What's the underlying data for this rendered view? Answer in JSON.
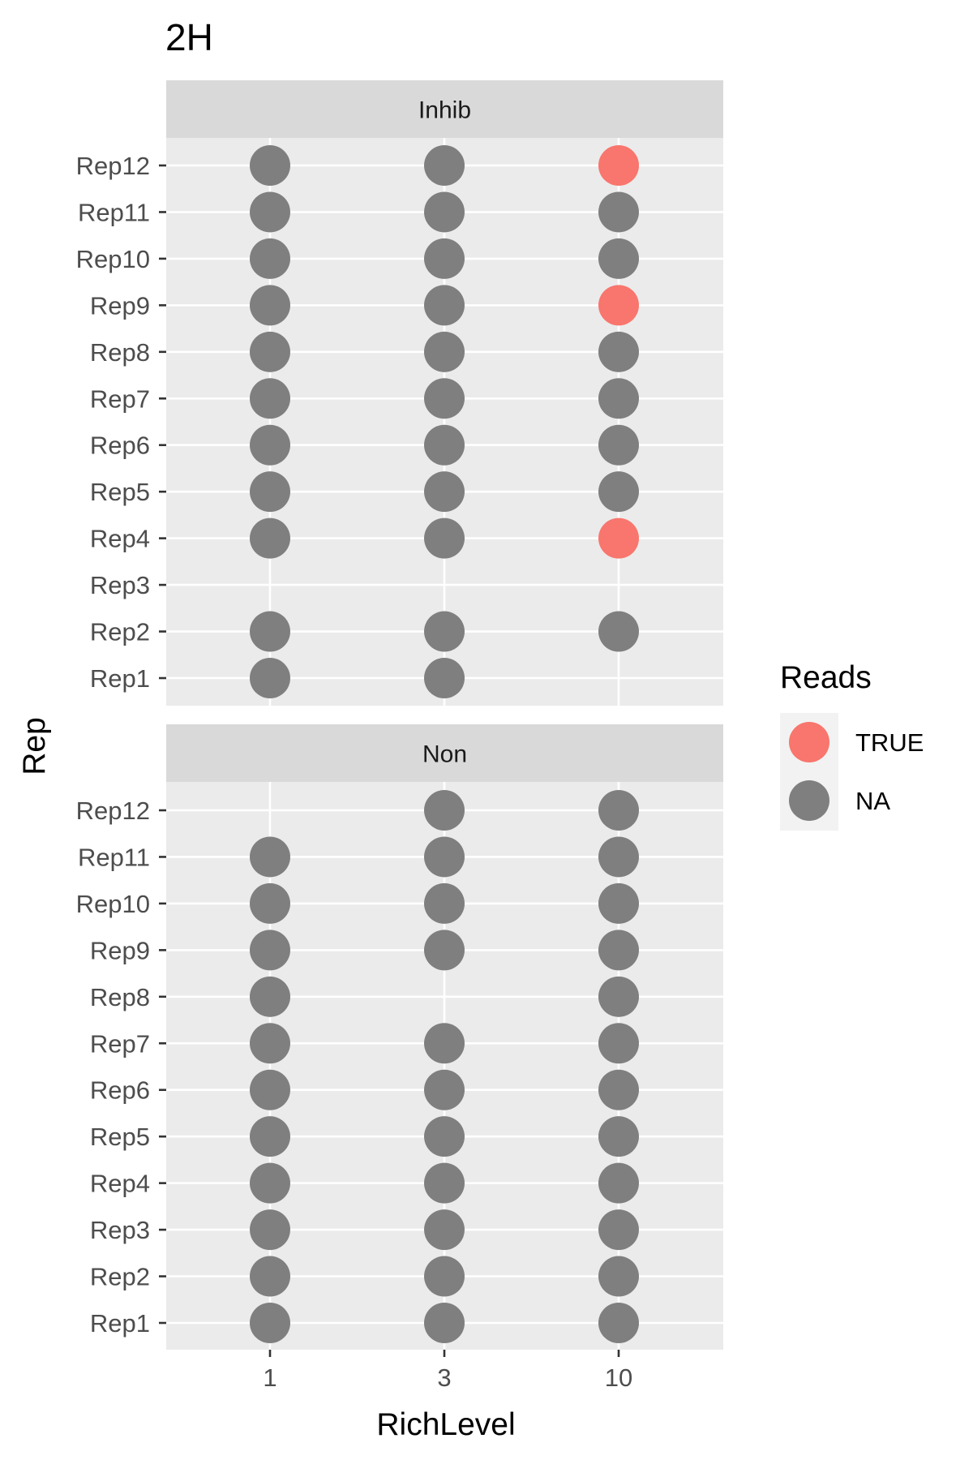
{
  "chart_data": {
    "type": "scatter",
    "title": "2H",
    "xlabel": "RichLevel",
    "ylabel": "Rep",
    "x_categories": [
      "1",
      "3",
      "10"
    ],
    "y_categories": [
      "Rep1",
      "Rep2",
      "Rep3",
      "Rep4",
      "Rep5",
      "Rep6",
      "Rep7",
      "Rep8",
      "Rep9",
      "Rep10",
      "Rep11",
      "Rep12"
    ],
    "grid": true,
    "legend": {
      "title": "Reads",
      "placement": "right",
      "entries": [
        {
          "label": "TRUE",
          "color": "#F8766D"
        },
        {
          "label": "NA",
          "color": "#7F7F7F"
        }
      ]
    },
    "facets": [
      {
        "label": "Inhib",
        "points": [
          {
            "x": "1",
            "y": "Rep12",
            "reads": "NA"
          },
          {
            "x": "3",
            "y": "Rep12",
            "reads": "NA"
          },
          {
            "x": "10",
            "y": "Rep12",
            "reads": "TRUE"
          },
          {
            "x": "1",
            "y": "Rep11",
            "reads": "NA"
          },
          {
            "x": "3",
            "y": "Rep11",
            "reads": "NA"
          },
          {
            "x": "10",
            "y": "Rep11",
            "reads": "NA"
          },
          {
            "x": "1",
            "y": "Rep10",
            "reads": "NA"
          },
          {
            "x": "3",
            "y": "Rep10",
            "reads": "NA"
          },
          {
            "x": "10",
            "y": "Rep10",
            "reads": "NA"
          },
          {
            "x": "1",
            "y": "Rep9",
            "reads": "NA"
          },
          {
            "x": "3",
            "y": "Rep9",
            "reads": "NA"
          },
          {
            "x": "10",
            "y": "Rep9",
            "reads": "TRUE"
          },
          {
            "x": "1",
            "y": "Rep8",
            "reads": "NA"
          },
          {
            "x": "3",
            "y": "Rep8",
            "reads": "NA"
          },
          {
            "x": "10",
            "y": "Rep8",
            "reads": "NA"
          },
          {
            "x": "1",
            "y": "Rep7",
            "reads": "NA"
          },
          {
            "x": "3",
            "y": "Rep7",
            "reads": "NA"
          },
          {
            "x": "10",
            "y": "Rep7",
            "reads": "NA"
          },
          {
            "x": "1",
            "y": "Rep6",
            "reads": "NA"
          },
          {
            "x": "3",
            "y": "Rep6",
            "reads": "NA"
          },
          {
            "x": "10",
            "y": "Rep6",
            "reads": "NA"
          },
          {
            "x": "1",
            "y": "Rep5",
            "reads": "NA"
          },
          {
            "x": "3",
            "y": "Rep5",
            "reads": "NA"
          },
          {
            "x": "10",
            "y": "Rep5",
            "reads": "NA"
          },
          {
            "x": "1",
            "y": "Rep4",
            "reads": "NA"
          },
          {
            "x": "3",
            "y": "Rep4",
            "reads": "NA"
          },
          {
            "x": "10",
            "y": "Rep4",
            "reads": "TRUE"
          },
          {
            "x": "1",
            "y": "Rep2",
            "reads": "NA"
          },
          {
            "x": "3",
            "y": "Rep2",
            "reads": "NA"
          },
          {
            "x": "10",
            "y": "Rep2",
            "reads": "NA"
          },
          {
            "x": "1",
            "y": "Rep1",
            "reads": "NA"
          },
          {
            "x": "3",
            "y": "Rep1",
            "reads": "NA"
          }
        ]
      },
      {
        "label": "Non",
        "points": [
          {
            "x": "3",
            "y": "Rep12",
            "reads": "NA"
          },
          {
            "x": "10",
            "y": "Rep12",
            "reads": "NA"
          },
          {
            "x": "1",
            "y": "Rep11",
            "reads": "NA"
          },
          {
            "x": "3",
            "y": "Rep11",
            "reads": "NA"
          },
          {
            "x": "10",
            "y": "Rep11",
            "reads": "NA"
          },
          {
            "x": "1",
            "y": "Rep10",
            "reads": "NA"
          },
          {
            "x": "3",
            "y": "Rep10",
            "reads": "NA"
          },
          {
            "x": "10",
            "y": "Rep10",
            "reads": "NA"
          },
          {
            "x": "1",
            "y": "Rep9",
            "reads": "NA"
          },
          {
            "x": "3",
            "y": "Rep9",
            "reads": "NA"
          },
          {
            "x": "10",
            "y": "Rep9",
            "reads": "NA"
          },
          {
            "x": "1",
            "y": "Rep8",
            "reads": "NA"
          },
          {
            "x": "10",
            "y": "Rep8",
            "reads": "NA"
          },
          {
            "x": "1",
            "y": "Rep7",
            "reads": "NA"
          },
          {
            "x": "3",
            "y": "Rep7",
            "reads": "NA"
          },
          {
            "x": "10",
            "y": "Rep7",
            "reads": "NA"
          },
          {
            "x": "1",
            "y": "Rep6",
            "reads": "NA"
          },
          {
            "x": "3",
            "y": "Rep6",
            "reads": "NA"
          },
          {
            "x": "10",
            "y": "Rep6",
            "reads": "NA"
          },
          {
            "x": "1",
            "y": "Rep5",
            "reads": "NA"
          },
          {
            "x": "3",
            "y": "Rep5",
            "reads": "NA"
          },
          {
            "x": "10",
            "y": "Rep5",
            "reads": "NA"
          },
          {
            "x": "1",
            "y": "Rep4",
            "reads": "NA"
          },
          {
            "x": "3",
            "y": "Rep4",
            "reads": "NA"
          },
          {
            "x": "10",
            "y": "Rep4",
            "reads": "NA"
          },
          {
            "x": "1",
            "y": "Rep3",
            "reads": "NA"
          },
          {
            "x": "3",
            "y": "Rep3",
            "reads": "NA"
          },
          {
            "x": "10",
            "y": "Rep3",
            "reads": "NA"
          },
          {
            "x": "1",
            "y": "Rep2",
            "reads": "NA"
          },
          {
            "x": "3",
            "y": "Rep2",
            "reads": "NA"
          },
          {
            "x": "10",
            "y": "Rep2",
            "reads": "NA"
          },
          {
            "x": "1",
            "y": "Rep1",
            "reads": "NA"
          },
          {
            "x": "3",
            "y": "Rep1",
            "reads": "NA"
          },
          {
            "x": "10",
            "y": "Rep1",
            "reads": "NA"
          }
        ]
      }
    ]
  }
}
